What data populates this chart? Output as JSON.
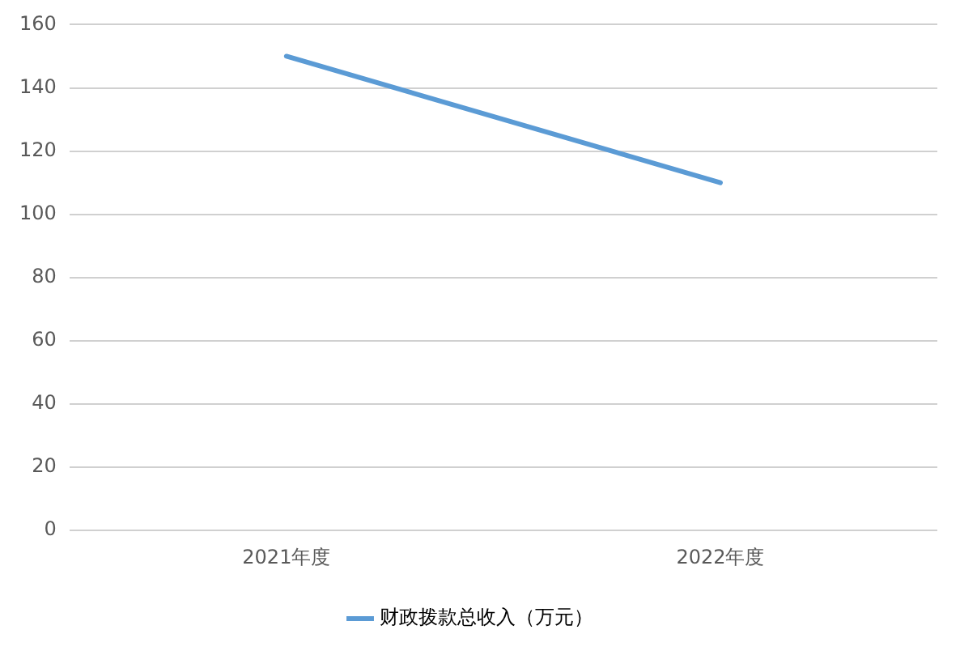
{
  "chart_data": {
    "type": "line",
    "categories": [
      "2021年度",
      "2022年度"
    ],
    "series": [
      {
        "name": "财政拨款总收入（万元）",
        "color": "#5b9bd5",
        "values": [
          150,
          110
        ]
      }
    ],
    "ylim": [
      0,
      160
    ],
    "yticks": [
      0,
      20,
      40,
      60,
      80,
      100,
      120,
      140,
      160
    ],
    "grid": "y",
    "legend": "bottom",
    "marker": "none"
  }
}
